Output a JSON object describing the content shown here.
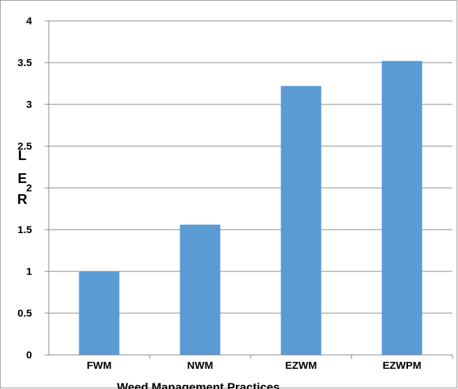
{
  "chart_data": {
    "type": "bar",
    "categories": [
      "FWM",
      "NWM",
      "EZWM",
      "EZWPM"
    ],
    "values": [
      1.0,
      1.56,
      3.22,
      3.52
    ],
    "title": "",
    "xlabel": "Weed Management Practices",
    "ylabel": "LER",
    "ylim": [
      0,
      4
    ],
    "yticks": [
      "0",
      "0.5",
      "1",
      "1.5",
      "2",
      "2.5",
      "3",
      "3.5",
      "4"
    ],
    "grid": true,
    "legend": "none",
    "bar_color": "#5b9bd5",
    "grid_color": "#868686"
  }
}
